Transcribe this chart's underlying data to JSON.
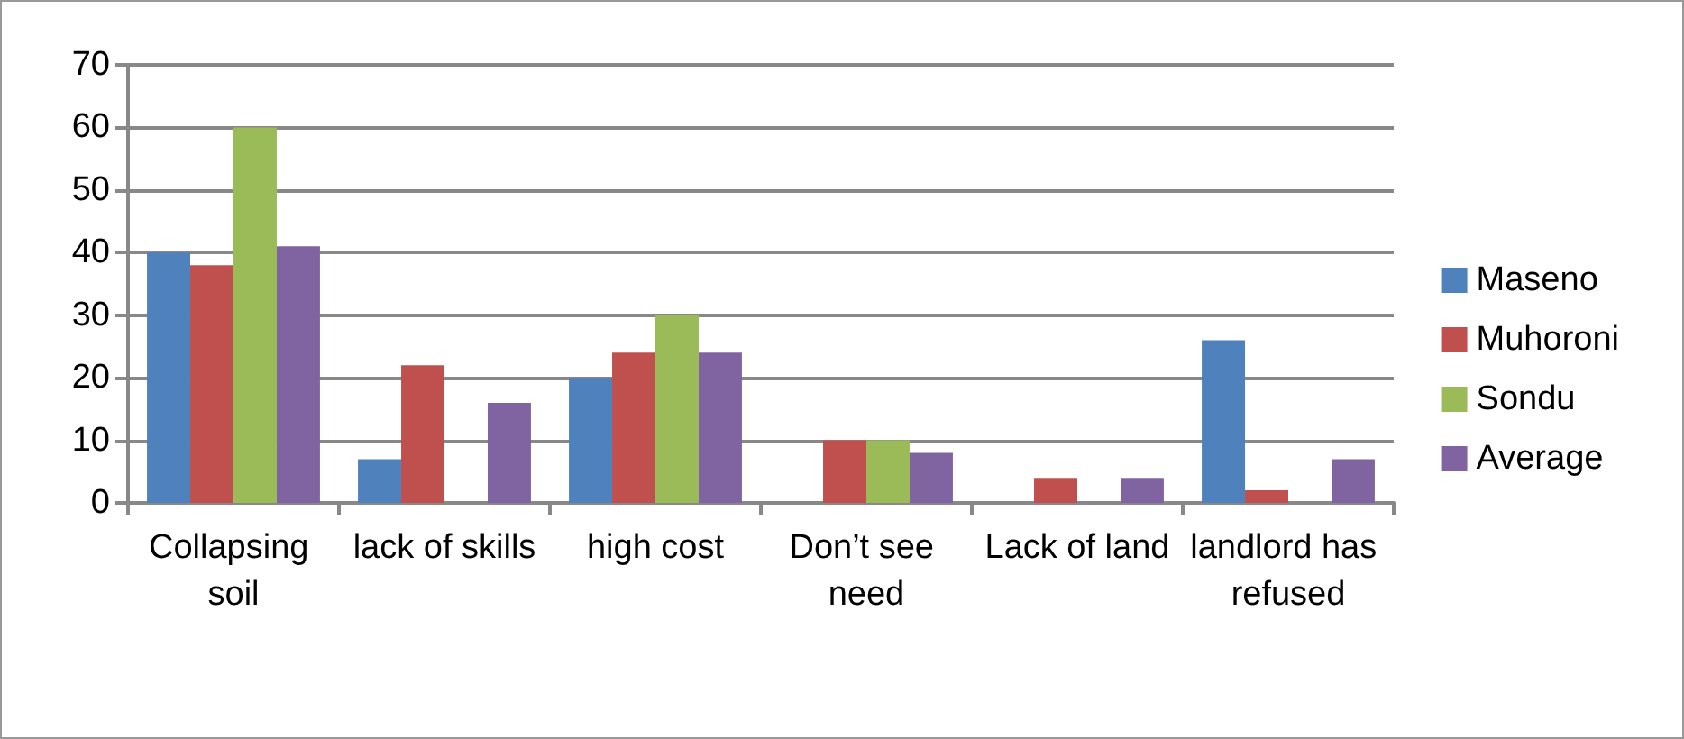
{
  "chart_data": {
    "type": "bar",
    "categories": [
      "Collapsing soil",
      "lack of skills",
      "high cost",
      "Don’t see need",
      "Lack of land",
      "landlord has refused"
    ],
    "series": [
      {
        "name": "Maseno",
        "color": "#4f81bd",
        "values": [
          40,
          7,
          20,
          0,
          0,
          26
        ]
      },
      {
        "name": "Muhoroni",
        "color": "#c0504d",
        "values": [
          38,
          22,
          24,
          10,
          4,
          2
        ]
      },
      {
        "name": "Sondu",
        "color": "#9bbb59",
        "values": [
          60,
          0,
          30,
          10,
          0,
          0
        ]
      },
      {
        "name": "Average",
        "color": "#8064a2",
        "values": [
          41,
          16,
          24,
          8,
          4,
          7
        ]
      }
    ],
    "ylim": [
      0,
      70
    ],
    "yticks": [
      0,
      10,
      20,
      30,
      40,
      50,
      60,
      70
    ],
    "grid": "y",
    "legend": "right"
  }
}
